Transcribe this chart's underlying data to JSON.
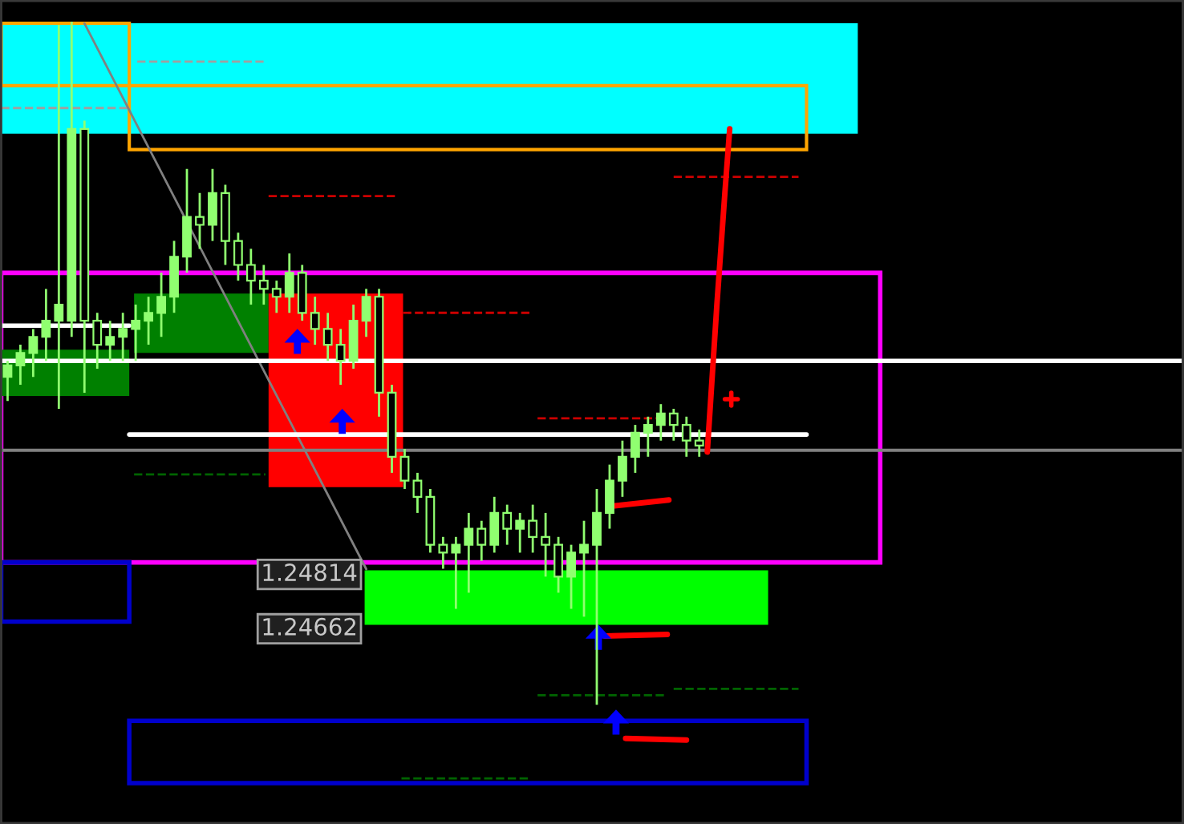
{
  "chart_data": {
    "type": "candlestick",
    "color": "#90ff70",
    "categories": [
      null,
      null,
      null,
      null,
      null,
      null,
      null,
      null,
      null,
      null,
      null,
      null,
      null,
      null,
      null,
      null,
      null,
      null,
      null,
      null,
      null,
      null,
      null,
      null,
      null,
      null,
      null,
      null,
      null,
      null,
      null,
      null,
      null,
      null,
      null,
      null,
      null,
      null,
      null,
      null,
      null,
      null,
      null,
      null,
      null,
      null,
      null,
      null,
      null,
      null,
      null,
      null,
      null,
      null,
      null
    ],
    "ohlc": [
      [
        1.25359,
        1.25404,
        1.25292,
        1.25391
      ],
      [
        1.25391,
        1.25449,
        1.25337,
        1.25426
      ],
      [
        1.25426,
        1.25493,
        1.25359,
        1.25471
      ],
      [
        1.25471,
        1.25605,
        1.25404,
        1.25516
      ],
      [
        1.25516,
        1.26343,
        1.2527,
        1.25561
      ],
      [
        1.25516,
        1.26352,
        1.25471,
        1.26052
      ],
      [
        1.26052,
        1.26075,
        1.25315,
        1.25516
      ],
      [
        1.25516,
        1.25538,
        1.25382,
        1.25449
      ],
      [
        1.25449,
        1.25516,
        1.25404,
        1.25471
      ],
      [
        1.25471,
        1.25538,
        1.25404,
        1.25493
      ],
      [
        1.25493,
        1.25561,
        1.25404,
        1.25516
      ],
      [
        1.25516,
        1.25583,
        1.25449,
        1.25538
      ],
      [
        1.25538,
        1.2565,
        1.25471,
        1.25583
      ],
      [
        1.25583,
        1.25739,
        1.25538,
        1.25695
      ],
      [
        1.25695,
        1.2594,
        1.2565,
        1.25806
      ],
      [
        1.25806,
        1.25873,
        1.25717,
        1.25784
      ],
      [
        1.25784,
        1.2594,
        1.25739,
        1.25873
      ],
      [
        1.25873,
        1.25896,
        1.25672,
        1.25739
      ],
      [
        1.25739,
        1.25762,
        1.25628,
        1.25672
      ],
      [
        1.25672,
        1.25717,
        1.25561,
        1.25628
      ],
      [
        1.25628,
        1.25672,
        1.25561,
        1.25605
      ],
      [
        1.25605,
        1.25628,
        1.25538,
        1.25583
      ],
      [
        1.25583,
        1.25704,
        1.25538,
        1.2565
      ],
      [
        1.2565,
        1.25672,
        1.25516,
        1.25538
      ],
      [
        1.25538,
        1.25583,
        1.25449,
        1.25493
      ],
      [
        1.25493,
        1.25538,
        1.25404,
        1.25449
      ],
      [
        1.25449,
        1.25493,
        1.25337,
        1.25404
      ],
      [
        1.25404,
        1.25561,
        1.25382,
        1.25516
      ],
      [
        1.25516,
        1.25605,
        1.25471,
        1.25583
      ],
      [
        1.25583,
        1.25605,
        1.25248,
        1.25315
      ],
      [
        1.25315,
        1.25337,
        1.25091,
        1.25136
      ],
      [
        1.25136,
        1.25158,
        1.25046,
        1.25069
      ],
      [
        1.25069,
        1.25091,
        1.24979,
        1.25024
      ],
      [
        1.25024,
        1.25046,
        1.24868,
        1.2489
      ],
      [
        1.2489,
        1.24912,
        1.24823,
        1.24868
      ],
      [
        1.24868,
        1.24912,
        1.24711,
        1.2489
      ],
      [
        1.2489,
        1.24979,
        1.24756,
        1.24935
      ],
      [
        1.24935,
        1.24957,
        1.24845,
        1.2489
      ],
      [
        1.2489,
        1.25024,
        1.24868,
        1.24979
      ],
      [
        1.24979,
        1.25002,
        1.2489,
        1.24935
      ],
      [
        1.24935,
        1.24979,
        1.24868,
        1.24957
      ],
      [
        1.24957,
        1.25002,
        1.24868,
        1.24912
      ],
      [
        1.24912,
        1.24979,
        1.24801,
        1.2489
      ],
      [
        1.2489,
        1.24912,
        1.24756,
        1.24801
      ],
      [
        1.24801,
        1.2489,
        1.24711,
        1.24868
      ],
      [
        1.24868,
        1.24957,
        1.24689,
        1.2489
      ],
      [
        1.2489,
        1.25046,
        1.24443,
        1.24979
      ],
      [
        1.24979,
        1.25114,
        1.24935,
        1.25069
      ],
      [
        1.25069,
        1.25181,
        1.25024,
        1.25136
      ],
      [
        1.25136,
        1.25225,
        1.25091,
        1.25203
      ],
      [
        1.25203,
        1.25248,
        1.25136,
        1.25225
      ],
      [
        1.25225,
        1.25283,
        1.25181,
        1.25257
      ],
      [
        1.25257,
        1.2527,
        1.25181,
        1.25225
      ],
      [
        1.25225,
        1.25248,
        1.25136,
        1.25181
      ],
      [
        1.25181,
        1.25212,
        1.25136,
        1.25167
      ]
    ],
    "ylim": [
      1.24112,
      1.2641
    ],
    "yticks": [
      1.24814,
      1.24662
    ],
    "ref_lines": [
      {
        "axis": "y",
        "value": 1.25154,
        "label": null,
        "color": "#808080"
      },
      {
        "axis": "y",
        "value": 1.25404,
        "label": null,
        "color": "#ffffff"
      },
      {
        "axis": "y",
        "value": 1.25198,
        "label": null,
        "color": "#ffffff"
      }
    ],
    "series": [
      {
        "type": "line",
        "values": [
          null,
          null,
          null,
          null,
          null,
          null,
          1.26347,
          null,
          null,
          null,
          null,
          null,
          null,
          null,
          null,
          null,
          null,
          null,
          null,
          null,
          null,
          null,
          null,
          null,
          null,
          null,
          null,
          null,
          1.24822,
          null,
          null,
          null,
          null,
          null,
          null,
          null,
          null,
          null,
          null,
          null,
          null,
          null,
          null,
          null,
          null,
          null,
          null,
          null,
          null,
          null,
          null,
          null,
          null,
          null,
          null
        ],
        "color": "#808080"
      }
    ],
    "grid": false,
    "legend": false
  }
}
